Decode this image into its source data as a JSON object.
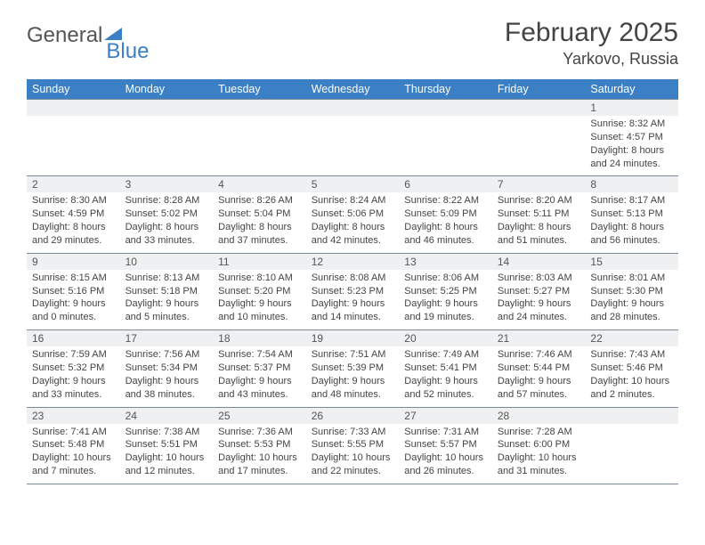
{
  "logo": {
    "text_gray": "General",
    "text_blue": "Blue"
  },
  "title": "February 2025",
  "location": "Yarkovo, Russia",
  "colors": {
    "header_bg": "#3b7fc4",
    "header_text": "#ffffff",
    "date_row_bg": "#eef0f2",
    "border": "#7a8a9a",
    "body_text": "#444444"
  },
  "day_names": [
    "Sunday",
    "Monday",
    "Tuesday",
    "Wednesday",
    "Thursday",
    "Friday",
    "Saturday"
  ],
  "weeks": [
    {
      "dates": [
        "",
        "",
        "",
        "",
        "",
        "",
        "1"
      ],
      "cells": [
        null,
        null,
        null,
        null,
        null,
        null,
        {
          "sunrise": "Sunrise: 8:32 AM",
          "sunset": "Sunset: 4:57 PM",
          "day1": "Daylight: 8 hours",
          "day2": "and 24 minutes."
        }
      ]
    },
    {
      "dates": [
        "2",
        "3",
        "4",
        "5",
        "6",
        "7",
        "8"
      ],
      "cells": [
        {
          "sunrise": "Sunrise: 8:30 AM",
          "sunset": "Sunset: 4:59 PM",
          "day1": "Daylight: 8 hours",
          "day2": "and 29 minutes."
        },
        {
          "sunrise": "Sunrise: 8:28 AM",
          "sunset": "Sunset: 5:02 PM",
          "day1": "Daylight: 8 hours",
          "day2": "and 33 minutes."
        },
        {
          "sunrise": "Sunrise: 8:26 AM",
          "sunset": "Sunset: 5:04 PM",
          "day1": "Daylight: 8 hours",
          "day2": "and 37 minutes."
        },
        {
          "sunrise": "Sunrise: 8:24 AM",
          "sunset": "Sunset: 5:06 PM",
          "day1": "Daylight: 8 hours",
          "day2": "and 42 minutes."
        },
        {
          "sunrise": "Sunrise: 8:22 AM",
          "sunset": "Sunset: 5:09 PM",
          "day1": "Daylight: 8 hours",
          "day2": "and 46 minutes."
        },
        {
          "sunrise": "Sunrise: 8:20 AM",
          "sunset": "Sunset: 5:11 PM",
          "day1": "Daylight: 8 hours",
          "day2": "and 51 minutes."
        },
        {
          "sunrise": "Sunrise: 8:17 AM",
          "sunset": "Sunset: 5:13 PM",
          "day1": "Daylight: 8 hours",
          "day2": "and 56 minutes."
        }
      ]
    },
    {
      "dates": [
        "9",
        "10",
        "11",
        "12",
        "13",
        "14",
        "15"
      ],
      "cells": [
        {
          "sunrise": "Sunrise: 8:15 AM",
          "sunset": "Sunset: 5:16 PM",
          "day1": "Daylight: 9 hours",
          "day2": "and 0 minutes."
        },
        {
          "sunrise": "Sunrise: 8:13 AM",
          "sunset": "Sunset: 5:18 PM",
          "day1": "Daylight: 9 hours",
          "day2": "and 5 minutes."
        },
        {
          "sunrise": "Sunrise: 8:10 AM",
          "sunset": "Sunset: 5:20 PM",
          "day1": "Daylight: 9 hours",
          "day2": "and 10 minutes."
        },
        {
          "sunrise": "Sunrise: 8:08 AM",
          "sunset": "Sunset: 5:23 PM",
          "day1": "Daylight: 9 hours",
          "day2": "and 14 minutes."
        },
        {
          "sunrise": "Sunrise: 8:06 AM",
          "sunset": "Sunset: 5:25 PM",
          "day1": "Daylight: 9 hours",
          "day2": "and 19 minutes."
        },
        {
          "sunrise": "Sunrise: 8:03 AM",
          "sunset": "Sunset: 5:27 PM",
          "day1": "Daylight: 9 hours",
          "day2": "and 24 minutes."
        },
        {
          "sunrise": "Sunrise: 8:01 AM",
          "sunset": "Sunset: 5:30 PM",
          "day1": "Daylight: 9 hours",
          "day2": "and 28 minutes."
        }
      ]
    },
    {
      "dates": [
        "16",
        "17",
        "18",
        "19",
        "20",
        "21",
        "22"
      ],
      "cells": [
        {
          "sunrise": "Sunrise: 7:59 AM",
          "sunset": "Sunset: 5:32 PM",
          "day1": "Daylight: 9 hours",
          "day2": "and 33 minutes."
        },
        {
          "sunrise": "Sunrise: 7:56 AM",
          "sunset": "Sunset: 5:34 PM",
          "day1": "Daylight: 9 hours",
          "day2": "and 38 minutes."
        },
        {
          "sunrise": "Sunrise: 7:54 AM",
          "sunset": "Sunset: 5:37 PM",
          "day1": "Daylight: 9 hours",
          "day2": "and 43 minutes."
        },
        {
          "sunrise": "Sunrise: 7:51 AM",
          "sunset": "Sunset: 5:39 PM",
          "day1": "Daylight: 9 hours",
          "day2": "and 48 minutes."
        },
        {
          "sunrise": "Sunrise: 7:49 AM",
          "sunset": "Sunset: 5:41 PM",
          "day1": "Daylight: 9 hours",
          "day2": "and 52 minutes."
        },
        {
          "sunrise": "Sunrise: 7:46 AM",
          "sunset": "Sunset: 5:44 PM",
          "day1": "Daylight: 9 hours",
          "day2": "and 57 minutes."
        },
        {
          "sunrise": "Sunrise: 7:43 AM",
          "sunset": "Sunset: 5:46 PM",
          "day1": "Daylight: 10 hours",
          "day2": "and 2 minutes."
        }
      ]
    },
    {
      "dates": [
        "23",
        "24",
        "25",
        "26",
        "27",
        "28",
        ""
      ],
      "cells": [
        {
          "sunrise": "Sunrise: 7:41 AM",
          "sunset": "Sunset: 5:48 PM",
          "day1": "Daylight: 10 hours",
          "day2": "and 7 minutes."
        },
        {
          "sunrise": "Sunrise: 7:38 AM",
          "sunset": "Sunset: 5:51 PM",
          "day1": "Daylight: 10 hours",
          "day2": "and 12 minutes."
        },
        {
          "sunrise": "Sunrise: 7:36 AM",
          "sunset": "Sunset: 5:53 PM",
          "day1": "Daylight: 10 hours",
          "day2": "and 17 minutes."
        },
        {
          "sunrise": "Sunrise: 7:33 AM",
          "sunset": "Sunset: 5:55 PM",
          "day1": "Daylight: 10 hours",
          "day2": "and 22 minutes."
        },
        {
          "sunrise": "Sunrise: 7:31 AM",
          "sunset": "Sunset: 5:57 PM",
          "day1": "Daylight: 10 hours",
          "day2": "and 26 minutes."
        },
        {
          "sunrise": "Sunrise: 7:28 AM",
          "sunset": "Sunset: 6:00 PM",
          "day1": "Daylight: 10 hours",
          "day2": "and 31 minutes."
        },
        null
      ]
    }
  ]
}
